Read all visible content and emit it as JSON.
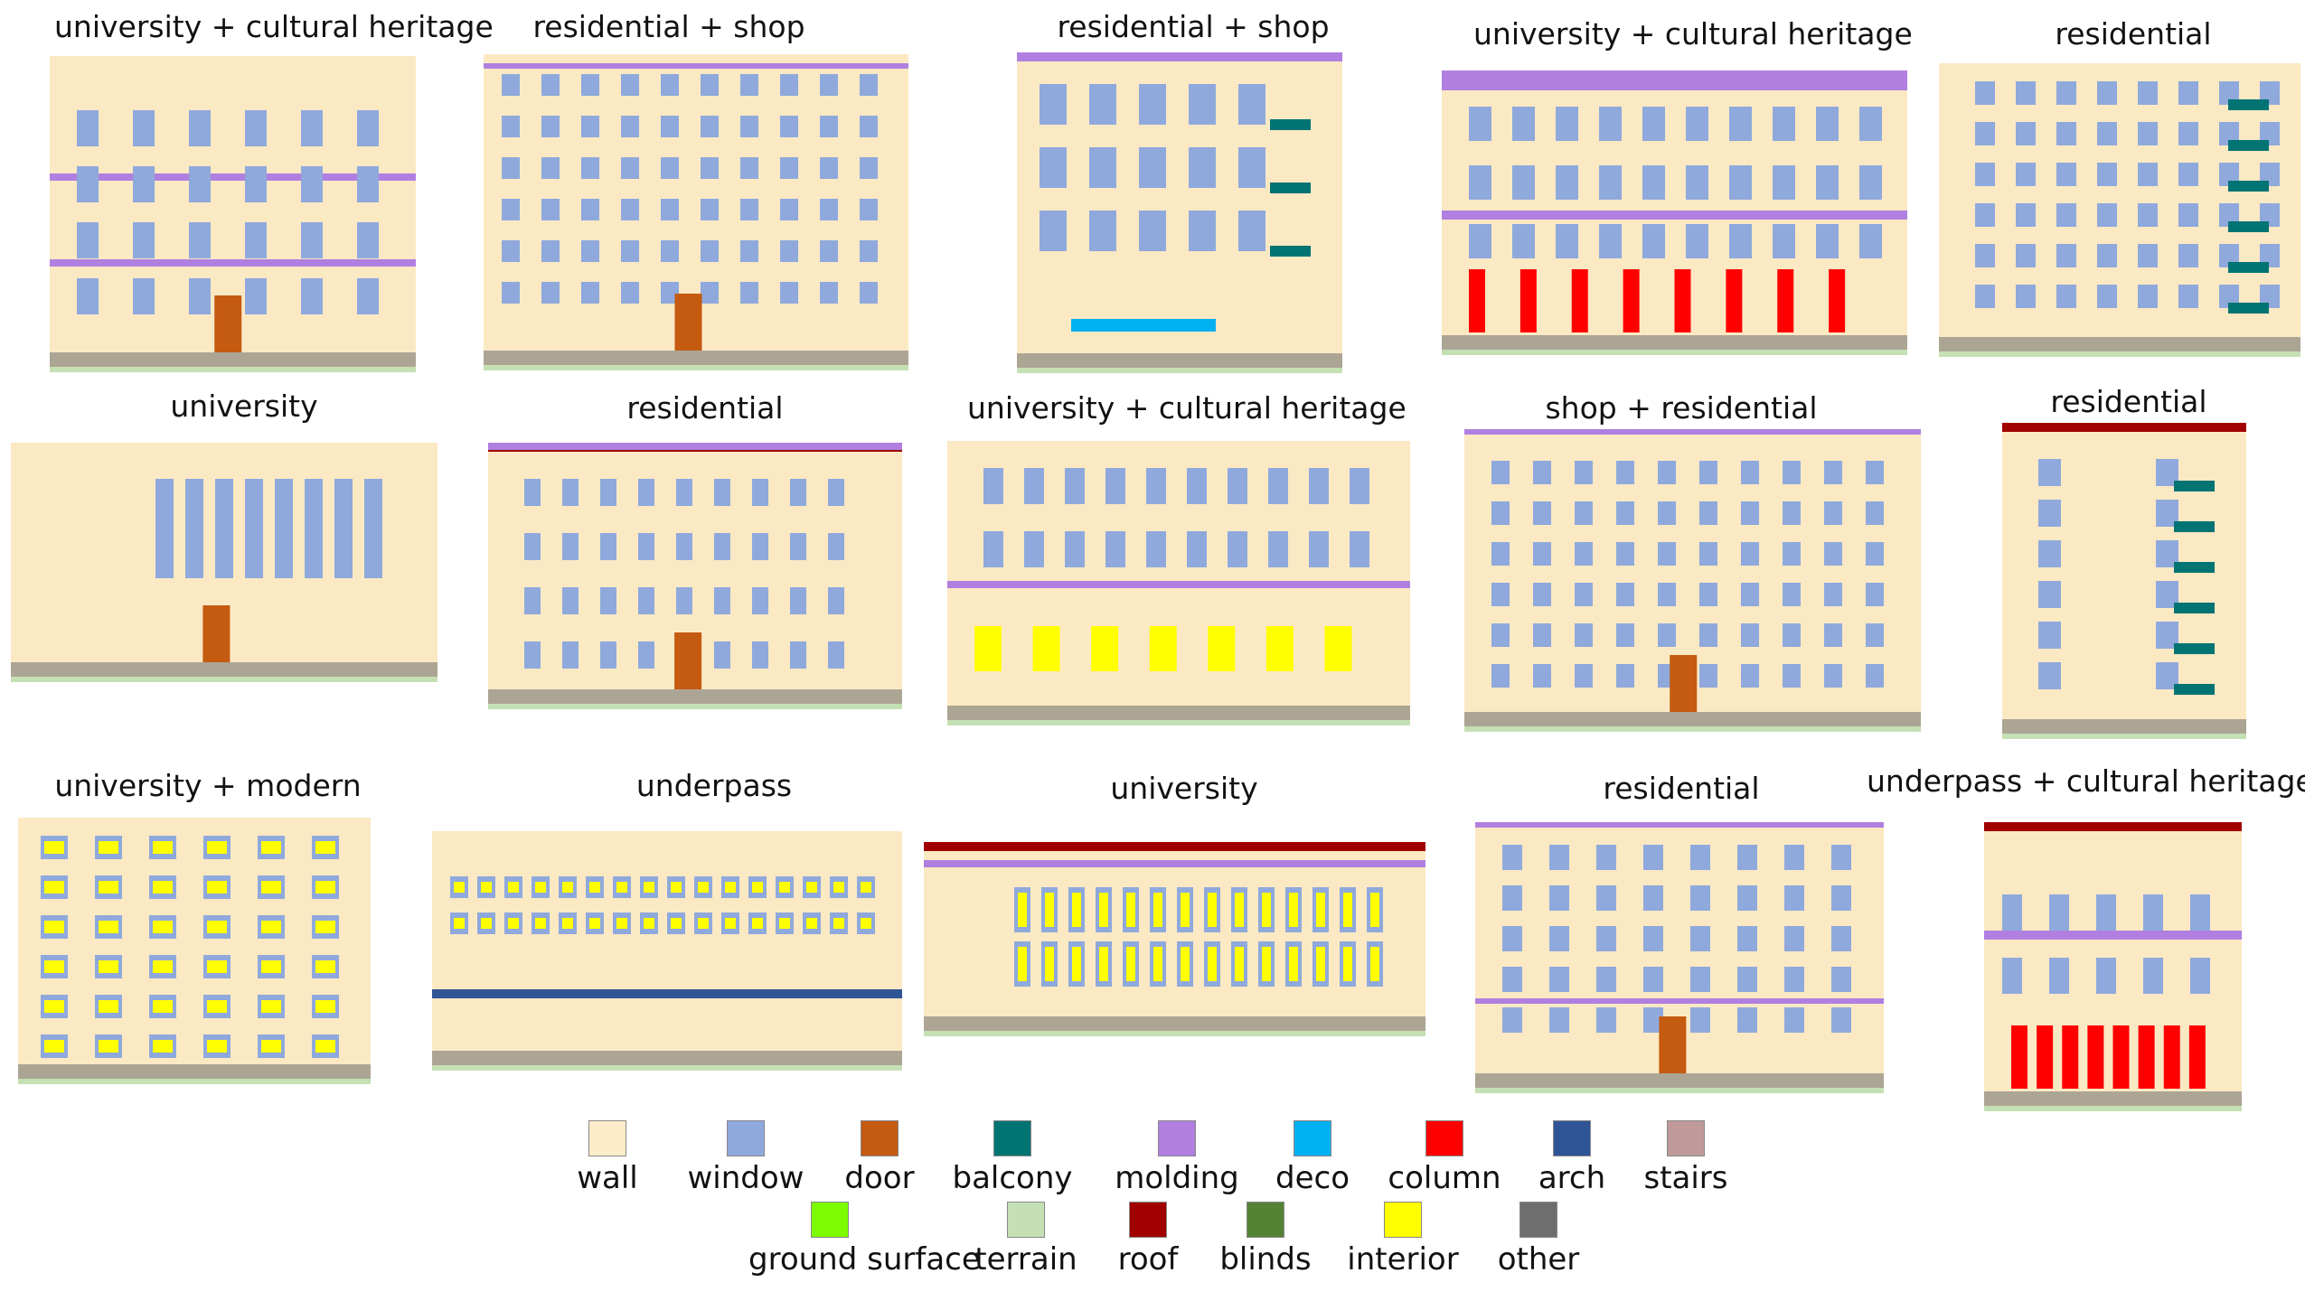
{
  "panels": [
    {
      "title": "university + cultural heritage"
    },
    {
      "title": "residential + shop"
    },
    {
      "title": "residential + shop"
    },
    {
      "title": "university + cultural heritage"
    },
    {
      "title": "residential"
    },
    {
      "title": "university"
    },
    {
      "title": "residential"
    },
    {
      "title": "university + cultural heritage"
    },
    {
      "title": "shop + residential"
    },
    {
      "title": "residential"
    },
    {
      "title": "university + modern"
    },
    {
      "title": "underpass"
    },
    {
      "title": "university"
    },
    {
      "title": "residential"
    },
    {
      "title": "underpass + cultural heritage"
    }
  ],
  "legend": [
    {
      "label": "wall",
      "color": "#fdecc9"
    },
    {
      "label": "window",
      "color": "#8fa9dc"
    },
    {
      "label": "door",
      "color": "#c55a11"
    },
    {
      "label": "balcony",
      "color": "#007373"
    },
    {
      "label": "molding",
      "color": "#b07fe0"
    },
    {
      "label": "deco",
      "color": "#00b0f0"
    },
    {
      "label": "column",
      "color": "#ff0000"
    },
    {
      "label": "arch",
      "color": "#2f5597"
    },
    {
      "label": "stairs",
      "color": "#c09a9a"
    },
    {
      "label": "ground surface",
      "color": "#7cfc00"
    },
    {
      "label": "terrain",
      "color": "#c5e0b4"
    },
    {
      "label": "roof",
      "color": "#a00000"
    },
    {
      "label": "blinds",
      "color": "#548235"
    },
    {
      "label": "interior",
      "color": "#ffff00"
    },
    {
      "label": "other",
      "color": "#6e6e6e"
    }
  ]
}
